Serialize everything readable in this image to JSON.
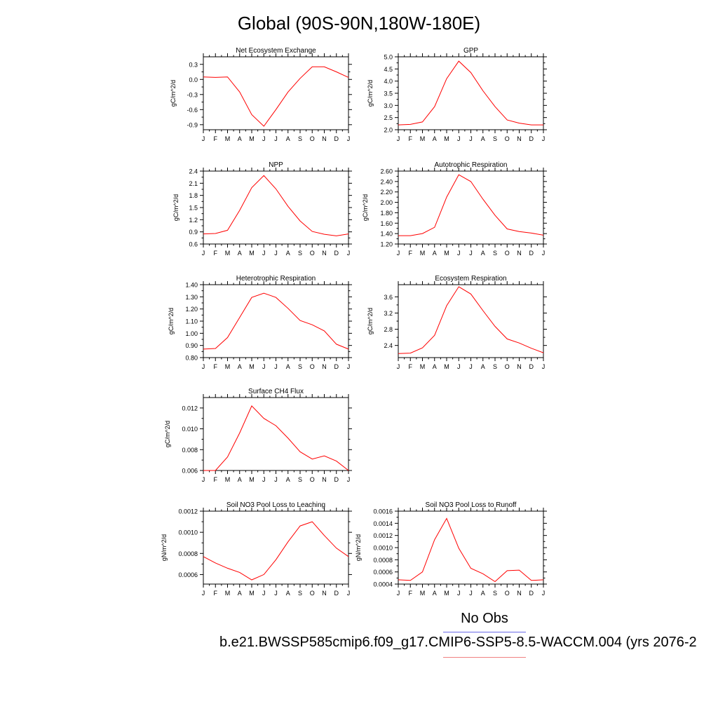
{
  "title": "Global (90S-90N,180W-180E)",
  "legend": {
    "label": "No Obs",
    "obs_color": "#6a6ae8",
    "model_color": "#f08080"
  },
  "case_label": "b.e21.BWSSP585cmip6.f09_g17.CMIP6-SSP5-8.5-WACCM.004 (yrs 2076-2",
  "line_color": "#ff0000",
  "months": [
    "J",
    "F",
    "M",
    "A",
    "M",
    "J",
    "J",
    "A",
    "S",
    "O",
    "N",
    "D",
    "J"
  ],
  "chart_data": [
    {
      "type": "line",
      "title": "Net Ecosystem Exchange",
      "ylabel": "gC/m^2/d",
      "ylim": [
        -1.0,
        0.45
      ],
      "yticks": [
        "0.3",
        "0.0",
        "-0.3",
        "-0.6",
        "-0.9"
      ],
      "yvals": [
        0.3,
        0.0,
        -0.3,
        -0.6,
        -0.9
      ],
      "values": [
        0.05,
        0.04,
        0.05,
        -0.25,
        -0.7,
        -0.93,
        -0.6,
        -0.25,
        0.02,
        0.25,
        0.25,
        0.15,
        0.04
      ]
    },
    {
      "type": "line",
      "title": "GPP",
      "ylabel": "gC/m^2/d",
      "ylim": [
        2.0,
        5.0
      ],
      "yticks": [
        "5.0",
        "4.5",
        "4.0",
        "3.5",
        "3.0",
        "2.5",
        "2.0"
      ],
      "yvals": [
        5.0,
        4.5,
        4.0,
        3.5,
        3.0,
        2.5,
        2.0
      ],
      "values": [
        2.2,
        2.22,
        2.32,
        2.95,
        4.1,
        4.82,
        4.35,
        3.6,
        2.95,
        2.4,
        2.27,
        2.2,
        2.2
      ]
    },
    {
      "type": "line",
      "title": "NPP",
      "ylabel": "gC/m^2/d",
      "ylim": [
        0.6,
        2.4
      ],
      "yticks": [
        "2.4",
        "2.1",
        "1.8",
        "1.5",
        "1.2",
        "0.9",
        "0.6"
      ],
      "yvals": [
        2.4,
        2.1,
        1.8,
        1.5,
        1.2,
        0.9,
        0.6
      ],
      "values": [
        0.85,
        0.86,
        0.94,
        1.43,
        1.99,
        2.29,
        1.96,
        1.53,
        1.17,
        0.91,
        0.84,
        0.8,
        0.85
      ]
    },
    {
      "type": "line",
      "title": "Autotrophic Respiration",
      "ylabel": "gC/m^2/d",
      "ylim": [
        1.2,
        2.6
      ],
      "yticks": [
        "2.60",
        "2.40",
        "2.20",
        "2.00",
        "1.80",
        "1.60",
        "1.40",
        "1.20"
      ],
      "yvals": [
        2.6,
        2.4,
        2.2,
        2.0,
        1.8,
        1.6,
        1.4,
        1.2
      ],
      "values": [
        1.36,
        1.36,
        1.4,
        1.52,
        2.1,
        2.53,
        2.4,
        2.06,
        1.75,
        1.49,
        1.44,
        1.41,
        1.37
      ]
    },
    {
      "type": "line",
      "title": "Heterotrophic Respiration",
      "ylabel": "gC/m^2/d",
      "ylim": [
        0.8,
        1.4
      ],
      "yticks": [
        "1.40",
        "1.30",
        "1.20",
        "1.10",
        "1.00",
        "0.90",
        "0.80"
      ],
      "yvals": [
        1.4,
        1.3,
        1.2,
        1.1,
        1.0,
        0.9,
        0.8
      ],
      "values": [
        0.87,
        0.875,
        0.965,
        1.13,
        1.295,
        1.33,
        1.295,
        1.205,
        1.105,
        1.07,
        1.02,
        0.91,
        0.87
      ]
    },
    {
      "type": "line",
      "title": "Ecosystem Respiration",
      "ylabel": "gC/m^2/d",
      "ylim": [
        2.1,
        3.9
      ],
      "yticks": [
        "3.6",
        "3.2",
        "2.8",
        "2.4"
      ],
      "yvals": [
        3.6,
        3.2,
        2.8,
        2.4
      ],
      "values": [
        2.2,
        2.21,
        2.34,
        2.65,
        3.38,
        3.85,
        3.67,
        3.26,
        2.87,
        2.56,
        2.46,
        2.33,
        2.22
      ]
    },
    {
      "type": "line",
      "title": "Surface CH4 Flux",
      "ylabel": "gC/m^2/d",
      "ylim": [
        0.006,
        0.013
      ],
      "yticks": [
        "0.012",
        "0.010",
        "0.008",
        "0.006"
      ],
      "yvals": [
        0.012,
        0.01,
        0.008,
        0.006
      ],
      "values": [
        0.006,
        0.006,
        0.0073,
        0.0096,
        0.0122,
        0.011,
        0.0103,
        0.0091,
        0.0078,
        0.0071,
        0.0074,
        0.0069,
        0.006
      ]
    },
    {
      "type": "line",
      "title": "Soil NO3 Pool Loss to Leaching",
      "ylabel": "gN/m^2/d",
      "ylim": [
        0.00051,
        0.0012
      ],
      "yticks": [
        "0.0012",
        "0.0010",
        "0.0008",
        "0.0006"
      ],
      "yvals": [
        0.0012,
        0.001,
        0.0008,
        0.0006
      ],
      "values": [
        0.00077,
        0.00071,
        0.00066,
        0.00062,
        0.00055,
        0.0006,
        0.00074,
        0.00091,
        0.00106,
        0.0011,
        0.00097,
        0.00085,
        0.00077
      ]
    },
    {
      "type": "line",
      "title": "Soil NO3 Pool Loss to Runoff",
      "ylabel": "gN/m^2/d",
      "ylim": [
        0.0004,
        0.0016
      ],
      "yticks": [
        "0.0016",
        "0.0014",
        "0.0012",
        "0.0010",
        "0.0008",
        "0.0006",
        "0.0004"
      ],
      "yvals": [
        0.0016,
        0.0014,
        0.0012,
        0.001,
        0.0008,
        0.0006,
        0.0004
      ],
      "values": [
        0.00047,
        0.00046,
        0.0006,
        0.00113,
        0.00148,
        0.00099,
        0.00066,
        0.00057,
        0.00044,
        0.00062,
        0.00063,
        0.00046,
        0.00047
      ]
    }
  ]
}
